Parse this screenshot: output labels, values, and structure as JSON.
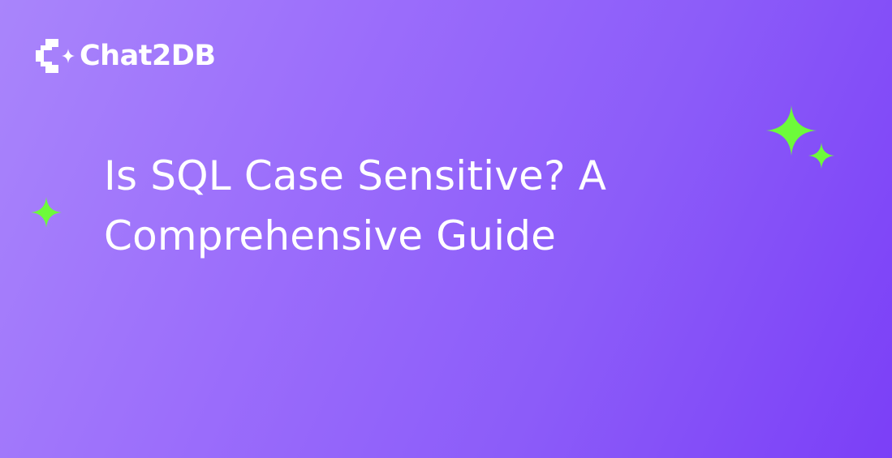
{
  "brand": {
    "name": "Chat2DB",
    "logo_icon": "chat2db-logo-icon"
  },
  "headline": {
    "line1": "Is SQL Case Sensitive? A",
    "line2": "Comprehensive Guide"
  },
  "decorations": {
    "sparkle_icon": "sparkle-icon",
    "sparkle_color": "#6dfb3a"
  },
  "colors": {
    "gradient_start": "#a985fb",
    "gradient_end": "#7b3ff7",
    "text": "#ffffff"
  }
}
